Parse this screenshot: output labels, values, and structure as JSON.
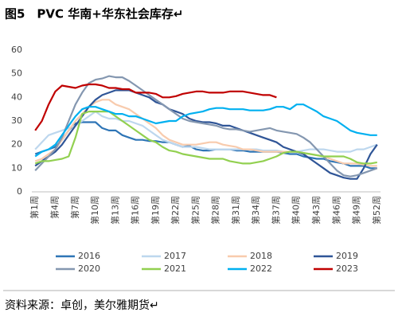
{
  "chart_data": {
    "type": "line",
    "title": "图5　PVC 华南+华东社会库存↵",
    "source": "资料来源：卓创，美尔雅期货↵",
    "categories": [
      "第1周",
      null,
      null,
      "第4周",
      null,
      null,
      "第7周",
      null,
      null,
      "第10周",
      null,
      null,
      "第13周",
      null,
      null,
      "第16周",
      null,
      null,
      "第19周",
      null,
      null,
      "第22周",
      null,
      null,
      "第25周",
      null,
      null,
      "第28周",
      null,
      null,
      "第31周",
      null,
      null,
      "第34周",
      null,
      null,
      "第37周",
      null,
      null,
      "第40周",
      null,
      null,
      "第43周",
      null,
      null,
      "第46周",
      null,
      null,
      "第49周",
      null,
      null,
      "第52周"
    ],
    "ylim": [
      0,
      60
    ],
    "yticks": [
      0,
      10,
      20,
      30,
      40,
      50,
      60
    ],
    "series": [
      {
        "name": "2016",
        "color": "#2e75b6",
        "values": [
          16,
          17,
          18,
          19,
          22,
          26,
          29,
          29.5,
          29.5,
          29.5,
          27,
          26,
          26,
          24,
          23,
          22,
          22,
          21.5,
          21.5,
          21,
          21,
          20,
          19,
          19.5,
          18,
          17.5,
          17.5,
          18,
          18,
          18,
          17.5,
          17.5,
          17,
          17,
          17,
          17,
          17,
          16.5,
          16,
          16,
          15,
          14.5,
          14,
          14,
          13,
          12.5,
          12,
          11,
          11,
          11,
          10,
          10
        ]
      },
      {
        "name": "2017",
        "color": "#bdd7ee",
        "values": [
          18,
          21,
          24,
          25,
          26,
          27,
          28,
          30,
          32,
          34,
          32,
          31,
          31,
          30,
          30,
          29,
          28,
          26,
          24,
          22,
          21,
          20,
          19,
          19,
          19,
          18.5,
          18,
          18,
          18,
          18,
          18,
          18,
          18,
          18,
          17.5,
          17.5,
          17.5,
          17,
          17,
          17,
          17.5,
          18,
          18,
          18,
          17.5,
          17,
          17,
          17,
          18,
          18,
          19,
          20
        ]
      },
      {
        "name": "2018",
        "color": "#f8cbad",
        "values": [
          13,
          14,
          16,
          18,
          22,
          26,
          30,
          33,
          36,
          38,
          39,
          39,
          37,
          36,
          35,
          33,
          31,
          29,
          27,
          24,
          22,
          21,
          20,
          20,
          20,
          20.5,
          21,
          21,
          20,
          19.5,
          19,
          18,
          18,
          17.5,
          17,
          17,
          17,
          17,
          17,
          17,
          16.5,
          16,
          15.5,
          15,
          14,
          13,
          12,
          12,
          12,
          11.5,
          11,
          11
        ]
      },
      {
        "name": "2019",
        "color": "#2f5597",
        "values": [
          11,
          13,
          15,
          17,
          20,
          24,
          28,
          32,
          36,
          39,
          41,
          42,
          43,
          43,
          43,
          42,
          41,
          40,
          38,
          37,
          35,
          34,
          33,
          31,
          30,
          29.5,
          29.5,
          29,
          28,
          28,
          27,
          26,
          25,
          24,
          23,
          22,
          21,
          19,
          18,
          17,
          16,
          14,
          12,
          10,
          8,
          7,
          6,
          5.5,
          5.5,
          10,
          16,
          20
        ]
      },
      {
        "name": "2020",
        "color": "#8497b0",
        "values": [
          9,
          12,
          15,
          18,
          23,
          30,
          37,
          42,
          46,
          47.5,
          48,
          49,
          48.5,
          48.5,
          47,
          45,
          43,
          41,
          39,
          37,
          35,
          33,
          31,
          30,
          29.5,
          29,
          28.5,
          28,
          27,
          26.5,
          26.5,
          26,
          25.5,
          26,
          26.5,
          27,
          26,
          25.5,
          25,
          24.5,
          23,
          21,
          18,
          15,
          12,
          9,
          7,
          6.5,
          7,
          8,
          9,
          10
        ]
      },
      {
        "name": "2021",
        "color": "#92d050",
        "values": [
          12,
          13,
          13,
          13.5,
          14,
          15,
          23,
          33,
          34,
          34,
          34,
          34,
          32,
          30,
          28,
          26,
          24,
          22,
          21,
          19,
          17.5,
          17,
          16,
          15.5,
          15,
          14.5,
          14,
          14,
          14,
          13,
          12.5,
          12,
          12,
          12.5,
          13,
          14,
          15,
          16.5,
          17,
          17,
          16.5,
          16,
          15.5,
          15,
          15,
          15,
          15,
          14,
          12.5,
          12,
          12,
          12.5
        ]
      },
      {
        "name": "2022",
        "color": "#00b0f0",
        "values": [
          15,
          17,
          18,
          20,
          24,
          28,
          32,
          35,
          36,
          36,
          35,
          34,
          33,
          33,
          32,
          32,
          31,
          30,
          29,
          29.5,
          30,
          30,
          32,
          33,
          33.5,
          34,
          35,
          35.5,
          35.5,
          35,
          35,
          35,
          34.5,
          34.5,
          34.5,
          35,
          36,
          36,
          35,
          37,
          37,
          35.5,
          34,
          32,
          31,
          30,
          28,
          26,
          25,
          24.5,
          24,
          24
        ]
      },
      {
        "name": "2023",
        "color": "#c00000",
        "values": [
          26,
          30,
          37,
          42.5,
          45,
          44.5,
          44,
          45,
          45.5,
          45.5,
          45,
          44,
          44,
          43.5,
          43.5,
          42,
          42,
          42,
          41.5,
          40,
          40,
          40.5,
          41.5,
          42,
          42.5,
          42.5,
          42,
          42,
          42,
          42.5,
          42.5,
          42.5,
          42,
          41.5,
          41,
          41,
          40,
          null,
          null,
          null,
          null,
          null,
          null,
          null,
          null,
          null,
          null,
          null,
          null,
          null,
          null,
          null
        ]
      }
    ]
  }
}
